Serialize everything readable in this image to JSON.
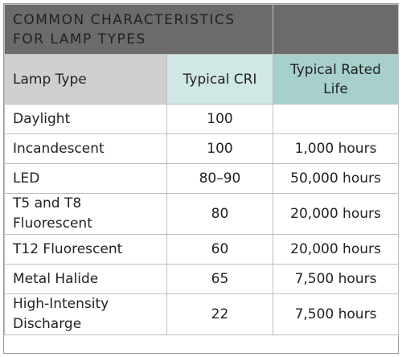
{
  "title": [
    "COMMON CHARACTERISTICS",
    "FOR LAMP TYPES"
  ],
  "headers": {
    "lamp_type": "Lamp Type",
    "cri": "Typical CRI",
    "life": "Typical Rated Life"
  },
  "rows": [
    {
      "lamp": "Daylight",
      "cri": "100",
      "life": ""
    },
    {
      "lamp": "Incandescent",
      "cri": "100",
      "life": "1,000 hours"
    },
    {
      "lamp": "LED",
      "cri": "80–90",
      "life": "50,000 hours"
    },
    {
      "lamp": "T5 and T8 Fluorescent",
      "cri": "80",
      "life": "20,000 hours"
    },
    {
      "lamp": "T12 Fluorescent",
      "cri": "60",
      "life": "20,000 hours"
    },
    {
      "lamp": "Metal Halide",
      "cri": "65",
      "life": "7,500 hours"
    },
    {
      "lamp": "High-Intensity Discharge",
      "cri": "22",
      "life": "7,500 hours"
    }
  ],
  "colors": {
    "title_bg": "#6b6b6b",
    "header_lamp_bg": "#cfcfcf",
    "header_cri_bg": "#cfe8e6",
    "header_life_bg": "#a7d0cc"
  }
}
